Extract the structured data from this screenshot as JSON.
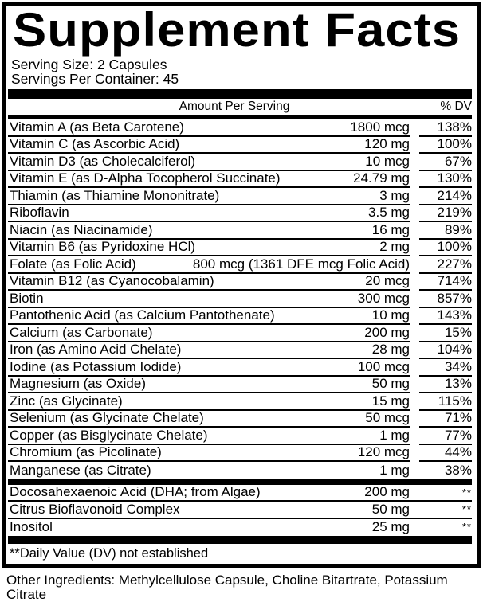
{
  "label": {
    "title": "Supplement Facts",
    "serving_size": "Serving Size: 2 Capsules",
    "servings_per_container": "Servings Per Container: 45",
    "columns": {
      "amount": "Amount Per Serving",
      "dv": "% DV"
    },
    "main_rows": [
      {
        "name": "Vitamin A (as Beta Carotene)",
        "amount": "1800 mcg",
        "dv": "138%"
      },
      {
        "name": "Vitamin C (as Ascorbic Acid)",
        "amount": "120 mg",
        "dv": "100%"
      },
      {
        "name": "Vitamin D3 (as Cholecalciferol)",
        "amount": "10 mcg",
        "dv": "67%"
      },
      {
        "name": "Vitamin E (as D-Alpha Tocopherol Succinate)",
        "amount": "24.79 mg",
        "dv": "130%"
      },
      {
        "name": "Thiamin (as Thiamine Mononitrate)",
        "amount": "3 mg",
        "dv": "214%"
      },
      {
        "name": "Riboflavin",
        "amount": "3.5 mg",
        "dv": "219%"
      },
      {
        "name": "Niacin (as Niacinamide)",
        "amount": "16 mg",
        "dv": "89%"
      },
      {
        "name": "Vitamin B6 (as Pyridoxine HCl)",
        "amount": "2 mg",
        "dv": "100%"
      },
      {
        "name": "Folate (as Folic Acid)",
        "amount": "800 mcg (1361 DFE mcg Folic Acid)",
        "dv": "227%"
      },
      {
        "name": "Vitamin B12 (as Cyanocobalamin)",
        "amount": "20 mcg",
        "dv": "714%"
      },
      {
        "name": "Biotin",
        "amount": "300 mcg",
        "dv": "857%"
      },
      {
        "name": "Pantothenic Acid (as Calcium Pantothenate)",
        "amount": "10 mg",
        "dv": "143%"
      },
      {
        "name": "Calcium (as Carbonate)",
        "amount": "200 mg",
        "dv": "15%"
      },
      {
        "name": "Iron (as Amino Acid Chelate)",
        "amount": "28 mg",
        "dv": "104%"
      },
      {
        "name": "Iodine (as Potassium Iodide)",
        "amount": "100 mcg",
        "dv": "34%"
      },
      {
        "name": "Magnesium (as Oxide)",
        "amount": "50 mg",
        "dv": "13%"
      },
      {
        "name": "Zinc (as Glycinate)",
        "amount": "15 mg",
        "dv": "115%"
      },
      {
        "name": "Selenium (as Glycinate Chelate)",
        "amount": "50 mcg",
        "dv": "71%"
      },
      {
        "name": "Copper (as Bisglycinate Chelate)",
        "amount": "1 mg",
        "dv": "77%"
      },
      {
        "name": "Chromium (as Picolinate)",
        "amount": "120 mcg",
        "dv": "44%"
      },
      {
        "name": "Manganese (as Citrate)",
        "amount": "1 mg",
        "dv": "38%"
      }
    ],
    "no_dv_rows": [
      {
        "name": "Docosahexaenoic Acid (DHA; from Algae)",
        "amount": "200 mg",
        "dv": "**"
      },
      {
        "name": "Citrus Bioflavonoid Complex",
        "amount": "50 mg",
        "dv": "**"
      },
      {
        "name": "Inositol",
        "amount": "25 mg",
        "dv": "**"
      }
    ],
    "footnote": "**Daily Value (DV) not established",
    "other_ingredients": "Other Ingredients: Methylcellulose Capsule, Choline Bitartrate, Potassium Citrate"
  },
  "colors": {
    "text": "#000000",
    "border": "#000000",
    "background": "#ffffff"
  }
}
